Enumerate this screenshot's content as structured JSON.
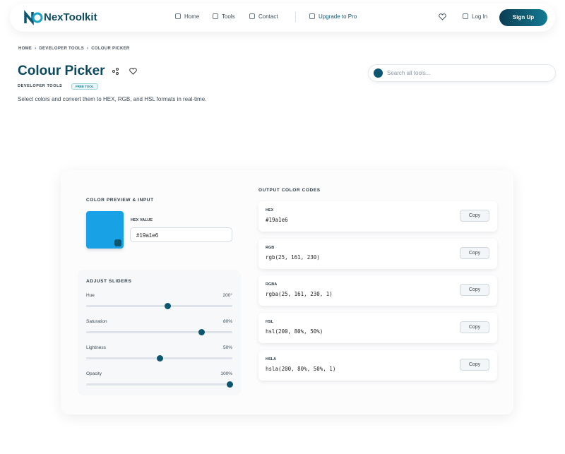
{
  "header": {
    "logo": "NexToolkit",
    "nav": [
      "Home",
      "Tools",
      "Contact"
    ],
    "upgrade": "Upgrade to Pro",
    "login": "Log In",
    "signup": "Sign Up"
  },
  "breadcrumb": [
    "HOME",
    "DEVELOPER TOOLS",
    "COLOUR PICKER"
  ],
  "page": {
    "title": "Colour Picker",
    "category": "DEVELOPER TOOLS",
    "badge": "FREE TOOL",
    "description": "Select colors and convert them to HEX, RGB, and HSL formats in real-time.",
    "search_placeholder": "Search all tools..."
  },
  "tool": {
    "preview_heading": "COLOR PREVIEW & INPUT",
    "hex_label": "HEX VALUE",
    "hex_value": "#19a1e6",
    "sliders_heading": "ADJUST SLIDERS",
    "sliders": [
      {
        "label": "Hue",
        "value": "200°"
      },
      {
        "label": "Saturation",
        "value": "80%"
      },
      {
        "label": "Lightness",
        "value": "50%"
      },
      {
        "label": "Opacity",
        "value": "100%"
      }
    ],
    "output_heading": "OUTPUT COLOR CODES",
    "outputs": [
      {
        "label": "HEX",
        "code": "#19a1e6",
        "button": "Copy"
      },
      {
        "label": "RGB",
        "code": "rgb(25, 161, 230)",
        "button": "Copy"
      },
      {
        "label": "RGBA",
        "code": "rgba(25, 161, 230, 1)",
        "button": "Copy"
      },
      {
        "label": "HSL",
        "code": "hsl(200, 80%, 50%)",
        "button": "Copy"
      },
      {
        "label": "HSLA",
        "code": "hsla(200, 80%, 50%, 1)",
        "button": "Copy"
      }
    ]
  }
}
